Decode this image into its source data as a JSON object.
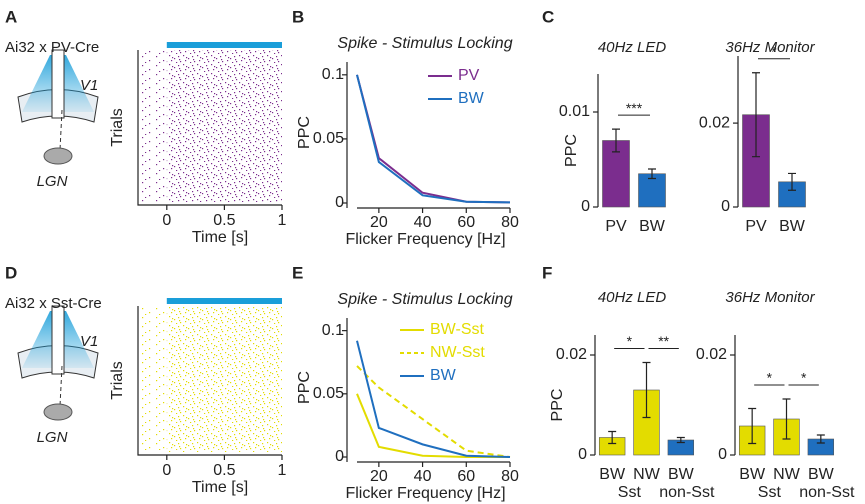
{
  "chart_data": [
    {
      "type": "raster",
      "panel": "A",
      "title": "Ai32 x PV-Cre",
      "region_labels": [
        "V1",
        "LGN"
      ],
      "ylabel": "Trials",
      "xlabel": "Time [s]",
      "xlim": [
        -0.25,
        1
      ],
      "xticks": [
        0,
        0.5,
        1
      ],
      "color": "#7b2d8e",
      "stimulus_color": "#1a9ed9"
    },
    {
      "type": "line",
      "panel": "B",
      "title": "Spike - Stimulus Locking",
      "xlabel": "Flicker Frequency [Hz]",
      "ylabel": "PPC",
      "x": [
        10,
        20,
        40,
        60,
        80
      ],
      "series": [
        {
          "name": "PV",
          "color": "#7b2d8e",
          "values": [
            0.1,
            0.035,
            0.008,
            0.001,
            0.0005
          ]
        },
        {
          "name": "BW",
          "color": "#1f6fbf",
          "values": [
            0.1,
            0.032,
            0.006,
            0.001,
            0.0005
          ]
        }
      ],
      "xlim": [
        10,
        80
      ],
      "xticks": [
        20,
        40,
        60,
        80
      ],
      "ylim": [
        0,
        0.11
      ],
      "yticks": [
        0,
        0.05,
        0.1
      ]
    },
    {
      "type": "bar",
      "panel": "C",
      "title": "40Hz LED",
      "ylabel": "PPC",
      "categories": [
        "PV",
        "BW"
      ],
      "values": [
        0.007,
        0.0035
      ],
      "errors": [
        0.0012,
        0.0005
      ],
      "colors": [
        "#7b2d8e",
        "#1f6fbf"
      ],
      "ylim": [
        0,
        0.014
      ],
      "yticks": [
        0,
        0.01
      ],
      "significance": [
        "***"
      ]
    },
    {
      "type": "bar",
      "title": "36Hz Monitor",
      "categories": [
        "PV",
        "BW"
      ],
      "values": [
        0.022,
        0.006
      ],
      "errors": [
        0.01,
        0.002
      ],
      "colors": [
        "#7b2d8e",
        "#1f6fbf"
      ],
      "ylim": [
        0,
        0.036
      ],
      "yticks": [
        0,
        0.02
      ],
      "significance": [
        "*"
      ]
    },
    {
      "type": "raster",
      "panel": "D",
      "title": "Ai32 x Sst-Cre",
      "region_labels": [
        "V1",
        "LGN"
      ],
      "ylabel": "Trials",
      "xlabel": "Time [s]",
      "xlim": [
        -0.25,
        1
      ],
      "xticks": [
        0,
        0.5,
        1
      ],
      "color": "#e3dc00",
      "stimulus_color": "#1a9ed9"
    },
    {
      "type": "line",
      "panel": "E",
      "title": "Spike - Stimulus Locking",
      "xlabel": "Flicker Frequency [Hz]",
      "ylabel": "PPC",
      "x": [
        10,
        20,
        40,
        60,
        80
      ],
      "series": [
        {
          "name": "BW-Sst",
          "color": "#e3dc00",
          "linestyle": "solid",
          "values": [
            0.05,
            0.008,
            0.001,
            0,
            0
          ]
        },
        {
          "name": "NW-Sst",
          "color": "#e3dc00",
          "linestyle": "dashed",
          "values": [
            0.072,
            0.055,
            0.03,
            0.005,
            0
          ]
        },
        {
          "name": "BW",
          "color": "#1f6fbf",
          "linestyle": "solid",
          "values": [
            0.092,
            0.023,
            0.01,
            0.001,
            0
          ]
        }
      ],
      "xlim": [
        10,
        80
      ],
      "xticks": [
        20,
        40,
        60,
        80
      ],
      "ylim": [
        0,
        0.11
      ],
      "yticks": [
        0,
        0.05,
        0.1
      ]
    },
    {
      "type": "bar",
      "panel": "F",
      "title": "40Hz LED",
      "ylabel": "PPC",
      "categories": [
        "BW",
        "NW",
        "BW"
      ],
      "group_labels": [
        "Sst",
        "non-Sst"
      ],
      "values": [
        0.0035,
        0.013,
        0.003
      ],
      "errors": [
        0.0012,
        0.0055,
        0.0005
      ],
      "colors": [
        "#e3dc00",
        "#e3dc00",
        "#1f6fbf"
      ],
      "ylim": [
        0,
        0.024
      ],
      "yticks": [
        0,
        0.02
      ],
      "significance": [
        "*",
        "**"
      ]
    },
    {
      "type": "bar",
      "title": "36Hz Monitor",
      "categories": [
        "BW",
        "NW",
        "BW"
      ],
      "group_labels": [
        "Sst",
        "non-Sst"
      ],
      "values": [
        0.0058,
        0.0072,
        0.0032
      ],
      "errors": [
        0.0035,
        0.004,
        0.0008
      ],
      "colors": [
        "#e3dc00",
        "#e3dc00",
        "#1f6fbf"
      ],
      "ylim": [
        0,
        0.024
      ],
      "yticks": [
        0,
        0.02
      ],
      "significance": [
        "*",
        "*"
      ]
    }
  ]
}
